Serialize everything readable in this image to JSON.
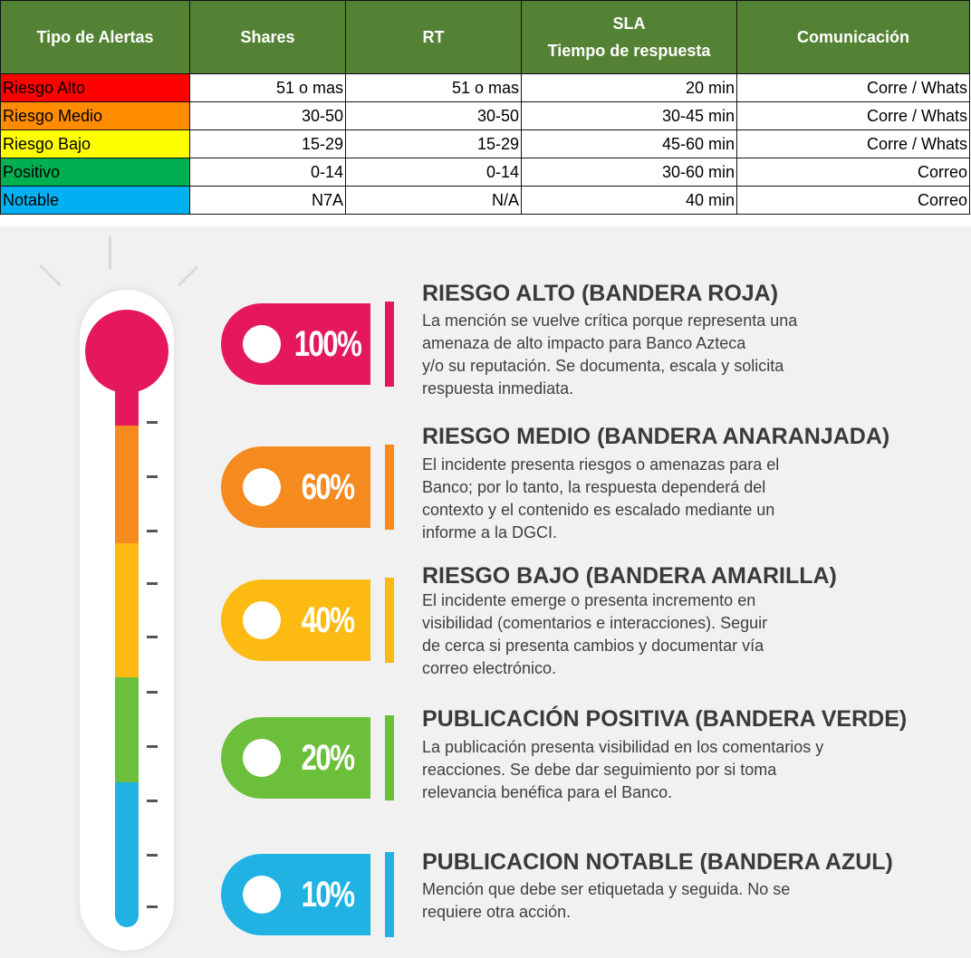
{
  "table": {
    "headers": {
      "tipo": "Tipo de Alertas",
      "shares": "Shares",
      "rt": "RT",
      "sla_line1": "SLA",
      "sla_line2": "Tiempo de respuesta",
      "comunicacion": "Comunicación"
    },
    "rows": [
      {
        "tipo": "Riesgo Alto",
        "shares": "51 o mas",
        "rt": "51 o mas",
        "sla": "20 min",
        "comunicacion": "Corre / Whats",
        "color": "#ff0000"
      },
      {
        "tipo": "Riesgo Medio",
        "shares": "30-50",
        "rt": "30-50",
        "sla": "30-45 min",
        "comunicacion": "Corre / Whats",
        "color": "#ff8c00"
      },
      {
        "tipo": "Riesgo Bajo",
        "shares": "15-29",
        "rt": "15-29",
        "sla": "45-60 min",
        "comunicacion": "Corre / Whats",
        "color": "#ffff00"
      },
      {
        "tipo": "Positivo",
        "shares": "0-14",
        "rt": "0-14",
        "sla": "30-60 min",
        "comunicacion": "Correo",
        "color": "#00b050"
      },
      {
        "tipo": "Notable",
        "shares": "N7A",
        "rt": "N/A",
        "sla": "40 min",
        "comunicacion": "Correo",
        "color": "#00b0f0"
      }
    ]
  },
  "infographic": {
    "items": [
      {
        "percent": "100%",
        "color": "#e5185f",
        "title": "RIESGO ALTO (BANDERA ROJA)",
        "desc": [
          "La mención se vuelve crítica porque representa una",
          "amenaza de alto impacto para Banco Azteca",
          "y/o su reputación. Se documenta, escala y solicita",
          "respuesta inmediata."
        ]
      },
      {
        "percent": "60%",
        "color": "#f58a1f",
        "title": "RIESGO MEDIO (BANDERA ANARANJADA)",
        "desc": [
          "El incidente presenta riesgos o amenazas para el",
          "Banco; por lo tanto, la respuesta dependerá del",
          "contexto y el contenido es escalado mediante un",
          "informe a la DGCI."
        ]
      },
      {
        "percent": "40%",
        "color": "#fcba12",
        "title": "RIESGO BAJO (BANDERA AMARILLA)",
        "desc": [
          "El incidente emerge o presenta incremento en",
          "visibilidad (comentarios e interacciones). Seguir",
          "de cerca si presenta cambios y documentar vía",
          "correo electrónico."
        ]
      },
      {
        "percent": "20%",
        "color": "#6cbf3a",
        "title": "PUBLICACIÓN POSITIVA (BANDERA VERDE)",
        "desc": [
          "La publicación presenta visibilidad en los comentarios y",
          "reacciones. Se debe dar seguimiento por si toma",
          "relevancia benéfica para el  Banco."
        ]
      },
      {
        "percent": "10%",
        "color": "#20b2e3",
        "title": "PUBLICACION NOTABLE (BANDERA AZUL)",
        "desc": [
          "Mención que debe ser etiquetada y seguida. No se",
          "requiere otra acción."
        ]
      }
    ]
  }
}
